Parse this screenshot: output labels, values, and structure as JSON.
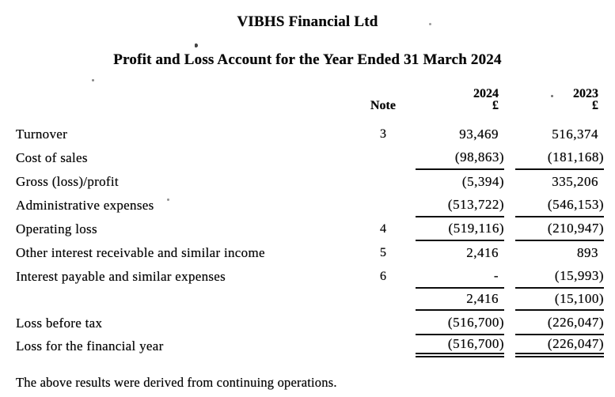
{
  "page": {
    "company_title": "VIBHS Financial Ltd",
    "report_title": "Profit and Loss Account for the Year Ended 31 March 2024",
    "table": {
      "headers": {
        "note": "Note",
        "col_2024": "2024",
        "col_2023": "2023",
        "currency_2024": "£",
        "currency_2023": "£"
      },
      "rows": [
        {
          "label": "Turnover",
          "note": "3",
          "v2024": "93,469",
          "v2023": "516,374",
          "rule": "none"
        },
        {
          "label": "Cost of sales",
          "note": "",
          "v2024": "(98,863)",
          "v2023": "(181,168)",
          "rule": "single"
        },
        {
          "label": "Gross (loss)/profit",
          "note": "",
          "v2024": "(5,394)",
          "v2023": "335,206",
          "rule": "none"
        },
        {
          "label": "Administrative expenses",
          "note": "",
          "v2024": "(513,722)",
          "v2023": "(546,153)",
          "rule": "single"
        },
        {
          "label": "Operating loss",
          "note": "4",
          "v2024": "(519,116)",
          "v2023": "(210,947)",
          "rule": "single"
        },
        {
          "label": "Other interest receivable and similar income",
          "note": "5",
          "v2024": "2,416",
          "v2023": "893",
          "rule": "none"
        },
        {
          "label": "Interest payable and similar expenses",
          "note": "6",
          "v2024": "-",
          "v2023": "(15,993)",
          "rule": "single"
        },
        {
          "label": "",
          "note": "",
          "v2024": "2,416",
          "v2023": "(15,100)",
          "rule": "single"
        },
        {
          "label": "Loss before tax",
          "note": "",
          "v2024": "(516,700)",
          "v2023": "(226,047)",
          "rule": "single"
        },
        {
          "label": "Loss for the financial year",
          "note": "",
          "v2024": "(516,700)",
          "v2023": "(226,047)",
          "rule": "double"
        }
      ]
    },
    "footnote": "The above results were derived from continuing operations."
  }
}
